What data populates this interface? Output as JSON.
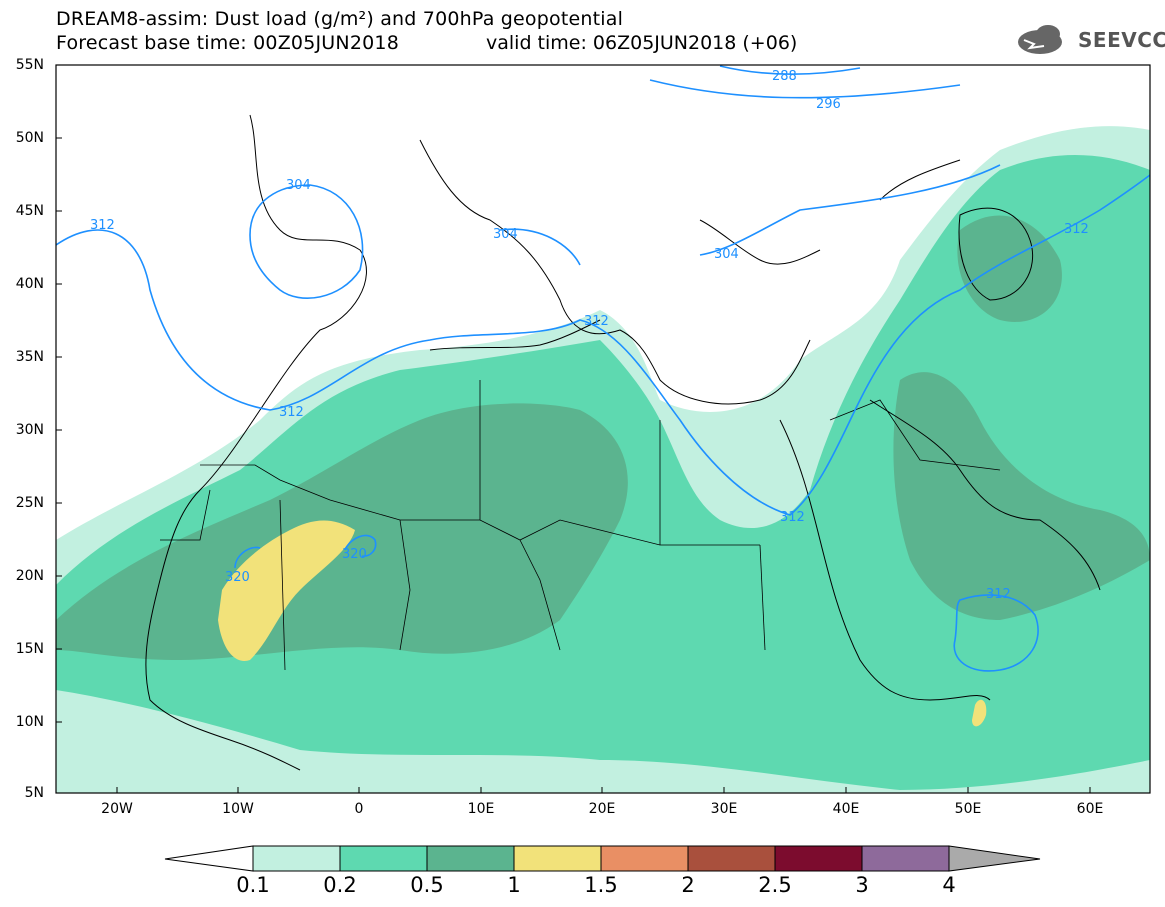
{
  "header": {
    "title_line1": "DREAM8-assim: Dust load (g/m²) and 700hPa geopotential",
    "title_line2": "Forecast base time: 00Z05JUN2018",
    "valid_time": "valid time: 06Z05JUN2018 (+06)",
    "logo_text": "SEEVCCC"
  },
  "map": {
    "lat_labels": [
      "55N",
      "50N",
      "45N",
      "40N",
      "35N",
      "30N",
      "25N",
      "20N",
      "15N",
      "10N",
      "5N"
    ],
    "lon_labels": [
      "20W",
      "10W",
      "0",
      "10E",
      "20E",
      "30E",
      "40E",
      "50E",
      "60E"
    ],
    "contour_labels": [
      "288",
      "296",
      "304",
      "304",
      "304",
      "312",
      "312",
      "312",
      "312",
      "312",
      "312",
      "320",
      "320"
    ]
  },
  "colorbar": {
    "labels": [
      "0.1",
      "0.2",
      "0.5",
      "1",
      "1.5",
      "2",
      "2.5",
      "3",
      "4"
    ],
    "colors": [
      "#c2f0e0",
      "#5ed9b0",
      "#5bb48f",
      "#f2e27a",
      "#e98f64",
      "#a9503d",
      "#7c0c2e",
      "#8e6a9b"
    ]
  }
}
